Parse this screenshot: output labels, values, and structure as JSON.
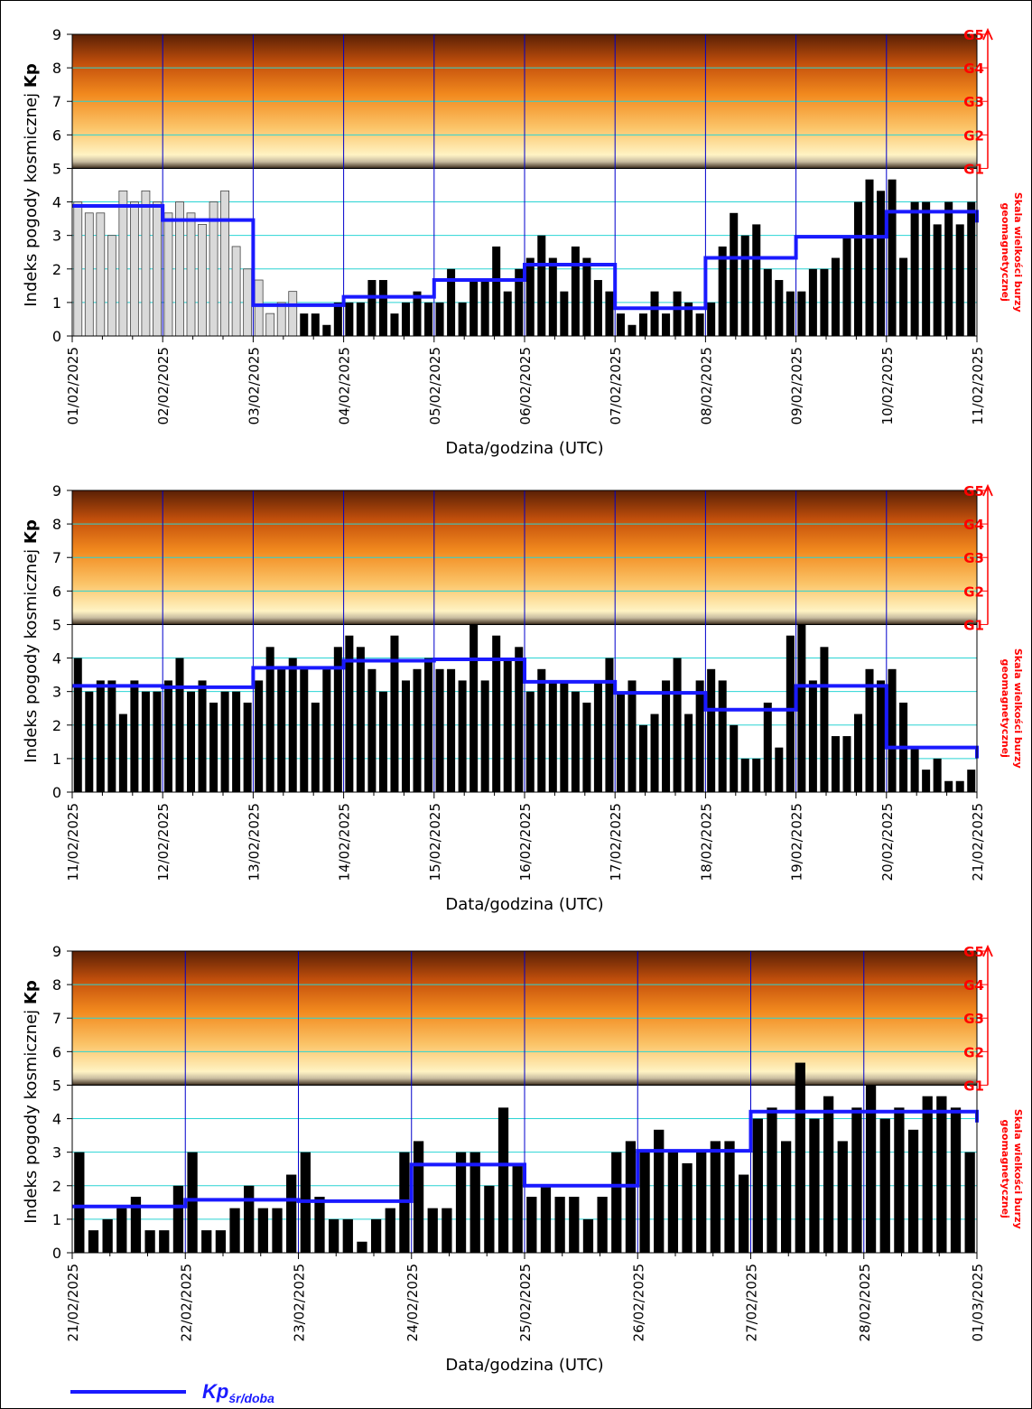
{
  "y_label_prefix": "Indeks pogody kosmicznej ",
  "y_label_bold": "Kp",
  "x_label": "Data/godzina (UTC)",
  "right_label_line1": "Skala wielkości burzy",
  "right_label_line2": "geomagnetycznej",
  "g_levels": [
    "G1",
    "G2",
    "G3",
    "G4",
    "G5"
  ],
  "legend": {
    "main": "Kp",
    "sub": "śr/doba"
  },
  "colors": {
    "hist_bar_fill": "#d9d9d9",
    "bar_fill": "#000000",
    "avg_line": "#1a1aff",
    "day_grid": "#0000cc",
    "h_grid": "#2ad4d4",
    "storm_scale": "#ff0000"
  },
  "chart_data": [
    {
      "type": "bar",
      "x_ticks": [
        "01/02/2025",
        "02/02/2025",
        "03/02/2025",
        "04/02/2025",
        "05/02/2025",
        "06/02/2025",
        "07/02/2025",
        "08/02/2025",
        "09/02/2025",
        "10/02/2025",
        "11/02/2025"
      ],
      "ylim": [
        0,
        9
      ],
      "historical_count": 20,
      "series": [
        {
          "values": [
            4,
            3.67,
            3.67,
            3,
            4.33,
            4,
            4.33,
            4,
            3.67,
            4,
            3.67,
            3.33,
            4,
            4.33,
            2.67,
            2,
            1.67,
            0.67,
            1,
            1.33,
            0.67,
            0.67,
            0.33,
            1,
            1,
            1,
            1.67,
            1.67,
            0.67,
            1,
            1.33,
            1,
            1,
            2,
            1,
            1.67,
            1.67,
            2.67,
            1.33,
            2,
            2.33,
            3,
            2.33,
            1.33,
            2.67,
            2.33,
            1.67,
            1.33,
            0.67,
            0.33,
            0.67,
            1.33,
            0.67,
            1.33,
            1,
            0.67,
            1,
            2.67,
            3.67,
            3,
            3.33,
            2,
            1.67,
            1.33,
            1.33,
            2,
            2,
            2.33,
            3,
            4,
            4.67,
            4.33,
            4.67,
            2.33,
            4,
            4,
            3.33,
            4,
            3.33,
            4
          ]
        },
        {
          "name": "Kp śr/doba",
          "values": [
            3.88,
            3.46,
            0.92,
            1.17,
            1.67,
            2.13,
            0.83,
            2.33,
            2.96,
            3.71
          ]
        }
      ]
    },
    {
      "type": "bar",
      "x_ticks": [
        "11/02/2025",
        "12/02/2025",
        "13/02/2025",
        "14/02/2025",
        "15/02/2025",
        "16/02/2025",
        "17/02/2025",
        "18/02/2025",
        "19/02/2025",
        "20/02/2025",
        "21/02/2025"
      ],
      "ylim": [
        0,
        9
      ],
      "historical_count": 0,
      "series": [
        {
          "values": [
            4,
            3,
            3.33,
            3.33,
            2.33,
            3.33,
            3,
            3,
            3.33,
            4,
            3,
            3.33,
            2.67,
            3,
            3,
            2.67,
            3.33,
            4.33,
            3.67,
            4,
            3.67,
            2.67,
            3.67,
            4.33,
            4.67,
            4.33,
            3.67,
            3,
            4.67,
            3.33,
            3.67,
            4,
            3.67,
            3.67,
            3.33,
            5,
            3.33,
            4.67,
            4,
            4.33,
            3,
            3.67,
            3.33,
            3.33,
            3,
            2.67,
            3.33,
            4,
            3,
            3.33,
            2,
            2.33,
            3.33,
            4,
            2.33,
            3.33,
            3.67,
            3.33,
            2,
            1,
            1,
            2.67,
            1.33,
            4.67,
            5,
            3.33,
            4.33,
            1.67,
            1.67,
            2.33,
            3.67,
            3.33,
            3.67,
            2.67,
            1.33,
            0.67,
            1,
            0.33,
            0.33,
            0.67
          ]
        },
        {
          "name": "Kp śr/doba",
          "values": [
            3.17,
            3.13,
            3.71,
            3.92,
            3.96,
            3.29,
            2.96,
            2.46,
            3.17,
            1.33
          ]
        }
      ]
    },
    {
      "type": "bar",
      "x_ticks": [
        "21/02/2025",
        "22/02/2025",
        "23/02/2025",
        "24/02/2025",
        "25/02/2025",
        "26/02/2025",
        "27/02/2025",
        "28/02/2025",
        "01/03/2025"
      ],
      "ylim": [
        0,
        9
      ],
      "historical_count": 0,
      "series": [
        {
          "values": [
            3,
            0.67,
            1,
            1.33,
            1.67,
            0.67,
            0.67,
            2,
            3,
            0.67,
            0.67,
            1.33,
            2,
            1.33,
            1.33,
            2.33,
            3,
            1.67,
            1,
            1,
            0.33,
            1,
            1.33,
            3,
            3.33,
            1.33,
            1.33,
            3,
            3,
            2,
            4.33,
            2.67,
            1.67,
            2,
            1.67,
            1.67,
            1,
            1.67,
            3,
            3.33,
            3,
            3.67,
            3,
            2.67,
            3,
            3.33,
            3.33,
            2.33,
            4,
            4.33,
            3.33,
            5.67,
            4,
            4.67,
            3.33,
            4.33,
            5,
            4,
            4.33,
            3.67,
            4.67,
            4.67,
            4.33,
            3
          ]
        },
        {
          "name": "Kp śr/doba",
          "values": [
            1.38,
            1.58,
            1.54,
            2.63,
            2,
            3.04,
            4.21,
            4.21
          ]
        }
      ]
    }
  ]
}
